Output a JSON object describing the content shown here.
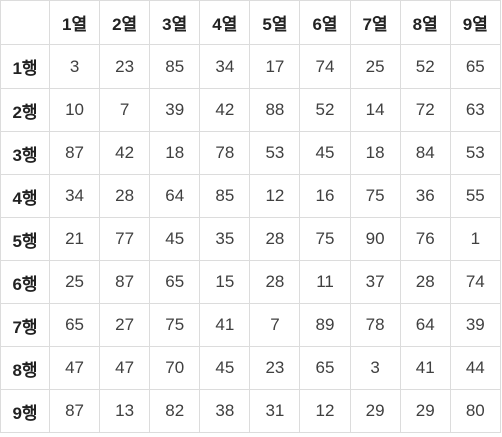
{
  "table": {
    "columns": [
      "1열",
      "2열",
      "3열",
      "4열",
      "5열",
      "6열",
      "7열",
      "8열",
      "9열"
    ],
    "rows": [
      {
        "label": "1행",
        "cells": [
          "3",
          "23",
          "85",
          "34",
          "17",
          "74",
          "25",
          "52",
          "65"
        ]
      },
      {
        "label": "2행",
        "cells": [
          "10",
          "7",
          "39",
          "42",
          "88",
          "52",
          "14",
          "72",
          "63"
        ]
      },
      {
        "label": "3행",
        "cells": [
          "87",
          "42",
          "18",
          "78",
          "53",
          "45",
          "18",
          "84",
          "53"
        ]
      },
      {
        "label": "4행",
        "cells": [
          "34",
          "28",
          "64",
          "85",
          "12",
          "16",
          "75",
          "36",
          "55"
        ]
      },
      {
        "label": "5행",
        "cells": [
          "21",
          "77",
          "45",
          "35",
          "28",
          "75",
          "90",
          "76",
          "1"
        ]
      },
      {
        "label": "6행",
        "cells": [
          "25",
          "87",
          "65",
          "15",
          "28",
          "11",
          "37",
          "28",
          "74"
        ]
      },
      {
        "label": "7행",
        "cells": [
          "65",
          "27",
          "75",
          "41",
          "7",
          "89",
          "78",
          "64",
          "39"
        ]
      },
      {
        "label": "8행",
        "cells": [
          "47",
          "47",
          "70",
          "45",
          "23",
          "65",
          "3",
          "41",
          "44"
        ]
      },
      {
        "label": "9행",
        "cells": [
          "87",
          "13",
          "82",
          "38",
          "31",
          "12",
          "29",
          "29",
          "80"
        ]
      }
    ]
  }
}
